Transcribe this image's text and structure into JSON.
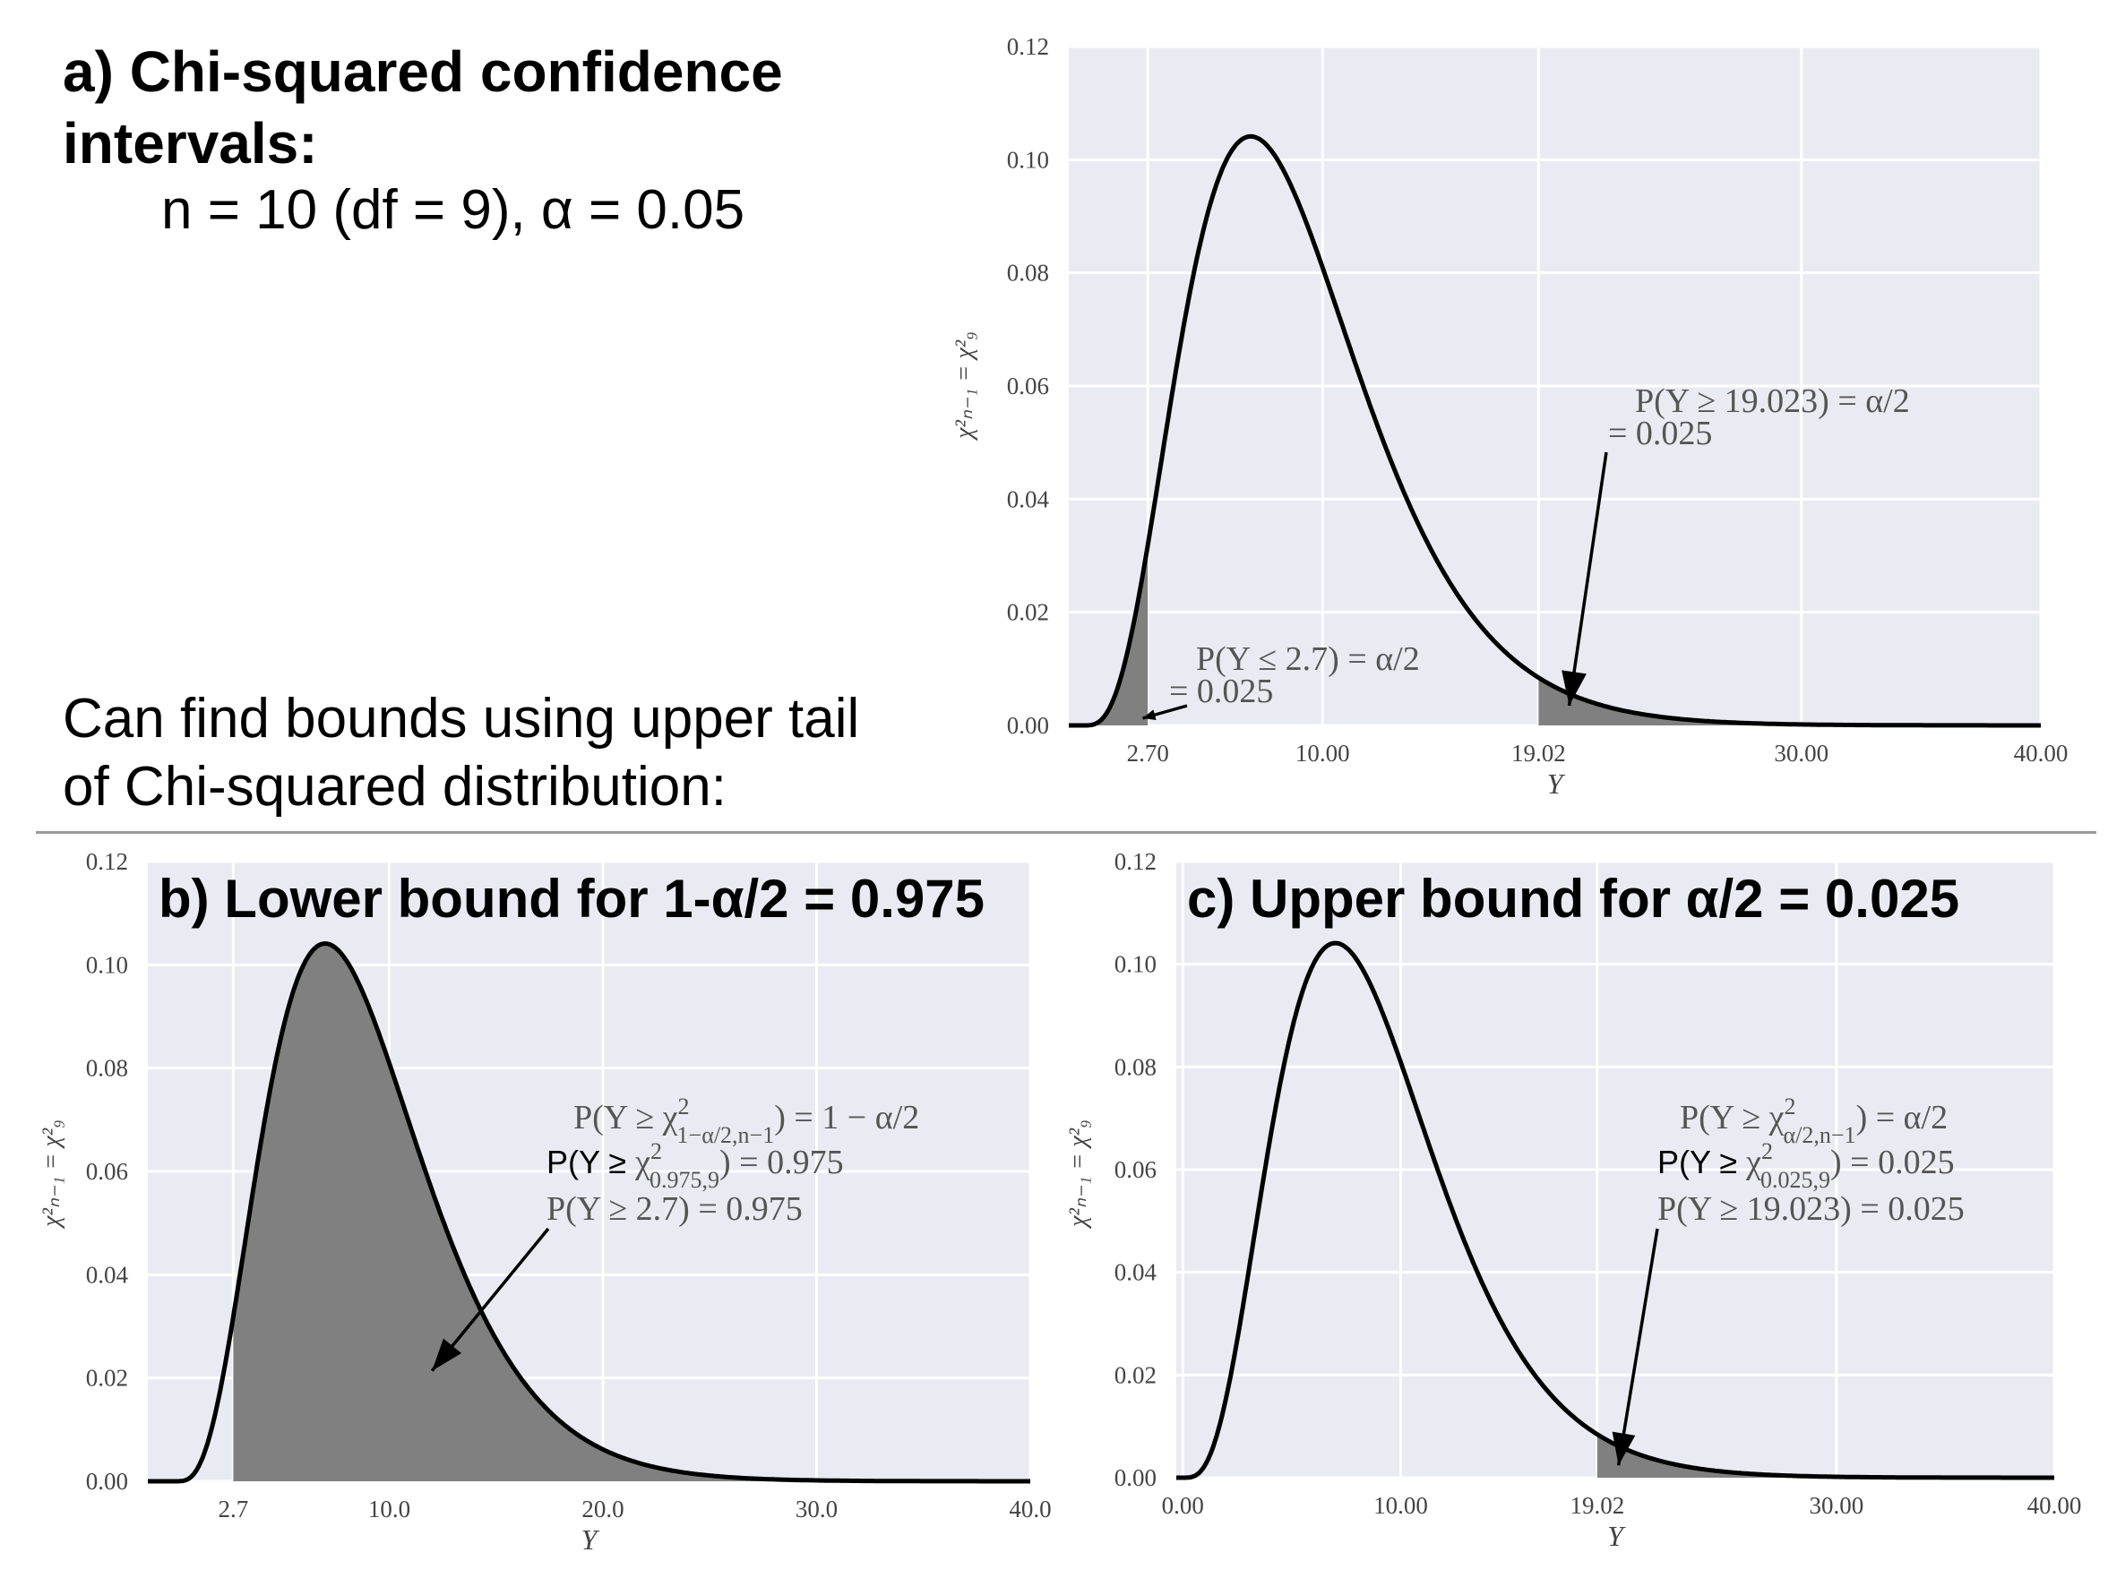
{
  "heading": {
    "title": "a) Chi-squared confidence intervals:",
    "title_line1": "a) Chi-squared confidence",
    "title_line2": "intervals:",
    "params": "n = 10 (df = 9), α = 0.05"
  },
  "note": {
    "line1": "Can find bounds using upper tail",
    "line2": "of Chi-squared distribution:"
  },
  "colors": {
    "plot_bg": "#eaeaf2",
    "grid": "#ffffff",
    "curve": "#000000",
    "shade": "#808080"
  },
  "chart_data": [
    {
      "type": "area",
      "distribution": "chi-squared",
      "df": 9,
      "title": "",
      "xlabel": "Y",
      "ylabel": "χ²ₙ₋₁ = χ²₉",
      "xlim": [
        0,
        40
      ],
      "ylim": [
        0,
        0.12
      ],
      "xticks": [
        2.7,
        10.0,
        19.02,
        30.0,
        40.0
      ],
      "xtick_labels": [
        "2.70",
        "10.00",
        "19.02",
        "30.00",
        "40.00"
      ],
      "yticks": [
        0,
        0.02,
        0.04,
        0.06,
        0.08,
        0.1,
        0.12
      ],
      "ytick_labels": [
        "0.00",
        "0.02",
        "0.04",
        "0.06",
        "0.08",
        "0.10",
        "0.12"
      ],
      "shaded_regions": [
        [
          0,
          2.7
        ],
        [
          19.023,
          40
        ]
      ],
      "grid": true,
      "annotations": [
        {
          "line1": "P(Y ≤ 2.7) = α/2",
          "line2": "= 0.025",
          "target": [
            2.3,
            0.001
          ]
        },
        {
          "line1": "P(Y ≥ 19.023) = α/2",
          "line2": "= 0.025",
          "target": [
            20.3,
            0.001
          ]
        }
      ]
    },
    {
      "type": "area",
      "distribution": "chi-squared",
      "df": 9,
      "title": "b) Lower bound for 1-α/2 = 0.975",
      "xlabel": "Y",
      "ylabel": "χ²ₙ₋₁ = χ²₉",
      "xlim": [
        0,
        40
      ],
      "ylim": [
        0,
        0.12
      ],
      "xticks": [
        2.7,
        10.0,
        20.0,
        30.0,
        40.0
      ],
      "xtick_labels": [
        "2.7",
        "10.0",
        "20.0",
        "30.0",
        "40.0"
      ],
      "yticks": [
        0,
        0.02,
        0.04,
        0.06,
        0.08,
        0.1,
        0.12
      ],
      "ytick_labels": [
        "0.00",
        "0.02",
        "0.04",
        "0.06",
        "0.08",
        "0.10",
        "0.12"
      ],
      "shaded_regions": [
        [
          2.7,
          40
        ]
      ],
      "grid": true,
      "annotations": [
        {
          "line1_main": "P(Y ≥ χ",
          "line1_sup": "2",
          "line1_sub": "1−α/2,n−1",
          "line1_end": ") = 1 − α/2",
          "line2_sans": "P(Y ≥ ",
          "line2_chi": "χ",
          "line2_sup": "2",
          "line2_sub": "0.975,9",
          "line2_end": ") = 0.975",
          "line3": "P(Y ≥ 2.7) = 0.975",
          "target": [
            12.0,
            0.02
          ]
        }
      ]
    },
    {
      "type": "area",
      "distribution": "chi-squared",
      "df": 9,
      "title": "c) Upper bound for α/2 = 0.025",
      "xlabel": "Y",
      "ylabel": "χ²ₙ₋₁ = χ²₉",
      "xlim": [
        0,
        40
      ],
      "ylim": [
        0,
        0.12
      ],
      "xticks": [
        0,
        10.0,
        19.02,
        30.0,
        40.0
      ],
      "xtick_labels": [
        "0.00",
        "10.00",
        "19.02",
        "30.00",
        "40.00"
      ],
      "yticks": [
        0,
        0.02,
        0.04,
        0.06,
        0.08,
        0.1,
        0.12
      ],
      "ytick_labels": [
        "0.00",
        "0.02",
        "0.04",
        "0.06",
        "0.08",
        "0.10",
        "0.12"
      ],
      "shaded_regions": [
        [
          19.023,
          40
        ]
      ],
      "grid": true,
      "annotations": [
        {
          "line1_main": "P(Y ≥ χ",
          "line1_sup": "2",
          "line1_sub": "α/2,n−1",
          "line1_end": ") = α/2",
          "line2_sans": "P(Y ≥ ",
          "line2_chi": "χ",
          "line2_sup": "2",
          "line2_sub": "0.025,9",
          "line2_end": ") = 0.025",
          "line3": "P(Y ≥ 19.023) = 0.025",
          "target": [
            20.0,
            0.001
          ]
        }
      ]
    }
  ]
}
